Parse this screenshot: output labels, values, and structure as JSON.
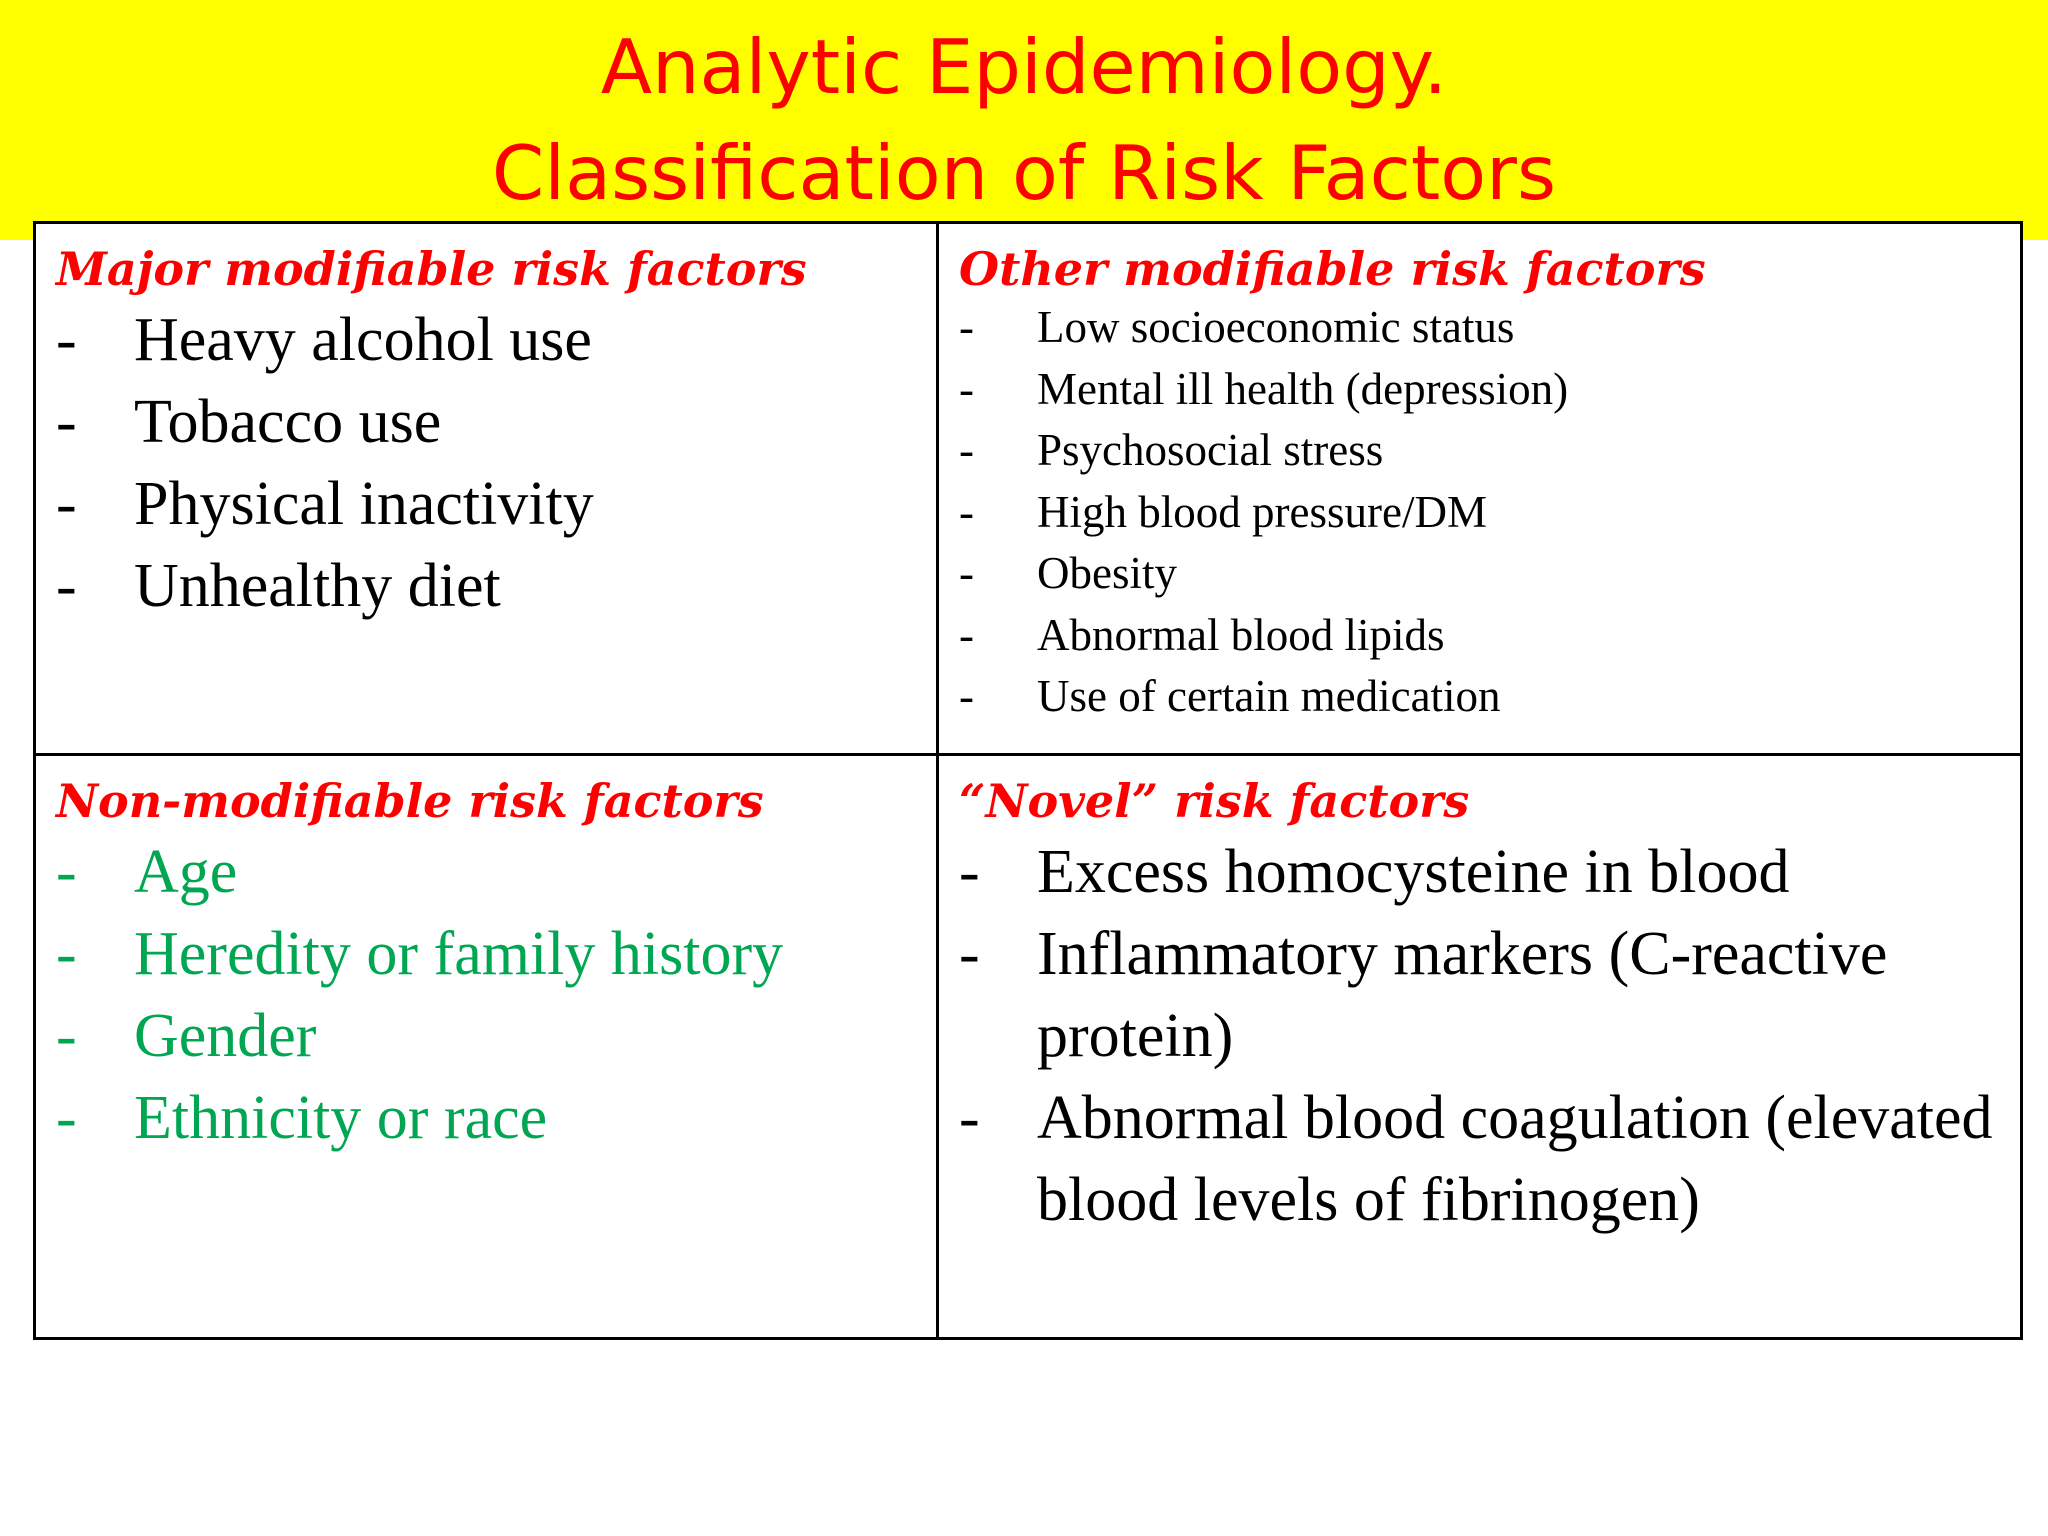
{
  "title": {
    "line1": "Analytic Epidemiology.",
    "line2": "Classification of Risk Factors"
  },
  "colors": {
    "title_band": "#ffff00",
    "title_text": "#ff0000",
    "heading_text": "#ff0000",
    "non_modifiable_text": "#00a651",
    "body_text": "#000000"
  },
  "bullet": "-",
  "major": {
    "heading": "Major modifiable risk factors",
    "items": [
      "Heavy alcohol use",
      "Tobacco use",
      "Physical inactivity",
      "Unhealthy diet"
    ]
  },
  "other": {
    "heading": "Other modifiable risk factors",
    "items": [
      "Low socioeconomic status",
      "Mental ill health (depression)",
      "Psychosocial stress",
      "High blood pressure/DM",
      "Obesity",
      "Abnormal blood lipids",
      "Use of certain medication"
    ]
  },
  "non_modifiable": {
    "heading": "Non-modifiable risk factors",
    "items": [
      "Age",
      "Heredity or family history",
      "Gender",
      "Ethnicity or race"
    ]
  },
  "novel": {
    "heading": "“Novel” risk factors",
    "items": [
      "Excess homocysteine in blood",
      "Inflammatory markers (C-reactive protein)",
      "Abnormal blood coagulation (elevated blood levels of fibrinogen)"
    ]
  }
}
